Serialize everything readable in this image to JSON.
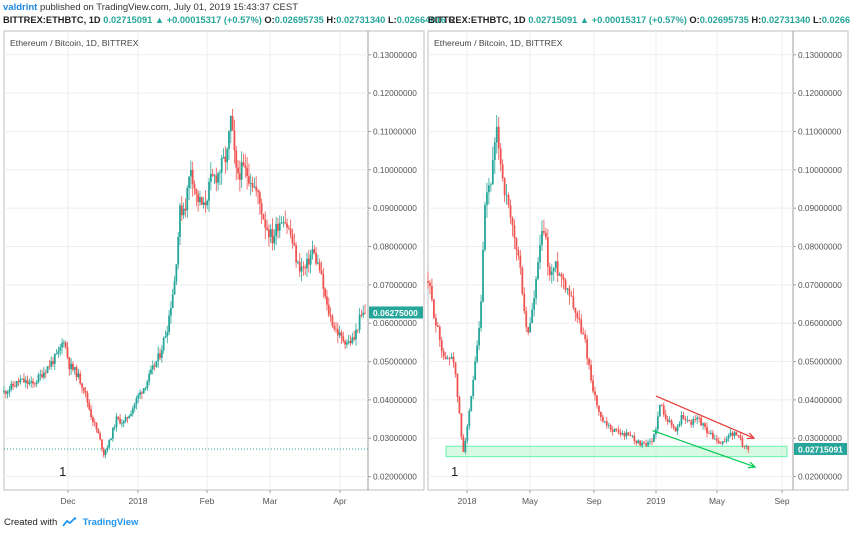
{
  "header": {
    "author": "valdrint",
    "published_text": "published on TradingView.com, July 01, 2019 15:43:37 CEST"
  },
  "quote_bar": {
    "symbol": "BITTREX:ETHBTC, 1D",
    "last": "0.02715091",
    "change": "▲ +0.00015317 (+0.57%)",
    "o_label": "O:",
    "o": "0.02695735",
    "h_label": "H:",
    "h": "0.02731340",
    "l_label": "L:",
    "l": "0.02664016",
    "c_label": "C"
  },
  "footer": {
    "created_with": "Created with",
    "brand": "TradingView"
  },
  "colors": {
    "up": "#26a69a",
    "down": "#ef5350",
    "grid": "#eeeeee",
    "axis": "#555555",
    "support_line": "#26a69a",
    "support_zone": "#b9f6ca",
    "wedge_upper": "#e53935",
    "wedge_lower": "#00c853"
  },
  "chart_data": [
    {
      "type": "candlestick",
      "title": "Ethereum / Bitcoin, 1D, BITTREX",
      "y_tick_labels": [
        "0.13000000",
        "0.12000000",
        "0.11000000",
        "0.10000000",
        "0.09000000",
        "0.08000000",
        "0.07000000",
        "0.06000000",
        "0.05000000",
        "0.04000000",
        "0.03000000",
        "0.02000000"
      ],
      "ylim": [
        0.0165,
        0.1362
      ],
      "x_tick_labels": [
        "Dec",
        "2018",
        "Feb",
        "Mar",
        "Apr"
      ],
      "last_price_label": "0.06275000",
      "support_level": 0.0272,
      "annotations": [
        {
          "text": "1",
          "date": "2017-11-25"
        }
      ],
      "series": [
        {
          "points": [
            [
              "2017-10-01",
              0.042
            ],
            [
              "2017-10-10",
              0.045
            ],
            [
              "2017-10-17",
              0.044
            ],
            [
              "2017-10-24",
              0.048
            ],
            [
              "2017-10-31",
              0.052
            ],
            [
              "2017-11-03",
              0.056
            ],
            [
              "2017-11-06",
              0.049
            ],
            [
              "2017-11-10",
              0.047
            ],
            [
              "2017-11-14",
              0.043
            ],
            [
              "2017-11-18",
              0.036
            ],
            [
              "2017-11-22",
              0.031
            ],
            [
              "2017-11-25",
              0.026
            ],
            [
              "2017-11-28",
              0.029
            ],
            [
              "2017-12-02",
              0.035
            ],
            [
              "2017-12-06",
              0.034
            ],
            [
              "2017-12-10",
              0.037
            ],
            [
              "2017-12-14",
              0.041
            ],
            [
              "2017-12-18",
              0.044
            ],
            [
              "2017-12-22",
              0.048
            ],
            [
              "2017-12-26",
              0.052
            ],
            [
              "2017-12-30",
              0.059
            ],
            [
              "2018-01-03",
              0.071
            ],
            [
              "2018-01-06",
              0.089
            ],
            [
              "2018-01-09",
              0.091
            ],
            [
              "2018-01-12",
              0.101
            ],
            [
              "2018-01-15",
              0.093
            ],
            [
              "2018-01-19",
              0.09
            ],
            [
              "2018-01-23",
              0.097
            ],
            [
              "2018-01-27",
              0.099
            ],
            [
              "2018-02-01",
              0.104
            ],
            [
              "2018-02-03",
              0.113
            ],
            [
              "2018-02-06",
              0.099
            ],
            [
              "2018-02-10",
              0.1
            ],
            [
              "2018-02-14",
              0.098
            ],
            [
              "2018-02-18",
              0.093
            ],
            [
              "2018-02-22",
              0.086
            ],
            [
              "2018-02-26",
              0.082
            ],
            [
              "2018-03-01",
              0.086
            ],
            [
              "2018-03-04",
              0.088
            ],
            [
              "2018-03-08",
              0.083
            ],
            [
              "2018-03-12",
              0.075
            ],
            [
              "2018-03-16",
              0.074
            ],
            [
              "2018-03-20",
              0.079
            ],
            [
              "2018-03-24",
              0.074
            ],
            [
              "2018-03-28",
              0.064
            ],
            [
              "2018-04-01",
              0.059
            ],
            [
              "2018-04-05",
              0.056
            ],
            [
              "2018-04-09",
              0.055
            ],
            [
              "2018-04-12",
              0.056
            ],
            [
              "2018-04-15",
              0.061
            ],
            [
              "2018-04-18",
              0.0628
            ]
          ]
        }
      ]
    },
    {
      "type": "candlestick",
      "title": "Ethereum / Bitcoin, 1D, BITTREX",
      "y_tick_labels": [
        "0.13000000",
        "0.12000000",
        "0.11000000",
        "0.10000000",
        "0.09000000",
        "0.08000000",
        "0.07000000",
        "0.06000000",
        "0.05000000",
        "0.04000000",
        "0.03000000",
        "0.02000000"
      ],
      "ylim": [
        0.0165,
        0.1362
      ],
      "x_tick_labels": [
        "2018",
        "May",
        "Sep",
        "2019",
        "May",
        "Sep"
      ],
      "last_price_label": "0.02715091",
      "support_zone": [
        0.0252,
        0.0279
      ],
      "annotations": [
        {
          "text": "1",
          "date": "2017-11-25"
        }
      ],
      "trendlines": [
        {
          "color": "wedge_upper",
          "from": [
            "2019-01-01",
            0.041
          ],
          "to": [
            "2019-07-10",
            0.03
          ]
        },
        {
          "color": "wedge_lower",
          "from": [
            "2018-12-25",
            0.032
          ],
          "to": [
            "2019-07-12",
            0.0225
          ]
        }
      ],
      "series": [
        {
          "points": [
            [
              "2017-09-15",
              0.071
            ],
            [
              "2017-10-01",
              0.06
            ],
            [
              "2017-10-20",
              0.05
            ],
            [
              "2017-11-05",
              0.052
            ],
            [
              "2017-11-18",
              0.036
            ],
            [
              "2017-11-25",
              0.026
            ],
            [
              "2017-12-10",
              0.038
            ],
            [
              "2017-12-30",
              0.06
            ],
            [
              "2018-01-10",
              0.092
            ],
            [
              "2018-01-22",
              0.098
            ],
            [
              "2018-02-03",
              0.11
            ],
            [
              "2018-02-15",
              0.097
            ],
            [
              "2018-03-01",
              0.087
            ],
            [
              "2018-03-20",
              0.076
            ],
            [
              "2018-04-05",
              0.056
            ],
            [
              "2018-04-20",
              0.067
            ],
            [
              "2018-05-01",
              0.08
            ],
            [
              "2018-05-10",
              0.085
            ],
            [
              "2018-05-20",
              0.072
            ],
            [
              "2018-06-01",
              0.075
            ],
            [
              "2018-06-15",
              0.072
            ],
            [
              "2018-07-01",
              0.068
            ],
            [
              "2018-07-15",
              0.062
            ],
            [
              "2018-08-01",
              0.055
            ],
            [
              "2018-08-15",
              0.044
            ],
            [
              "2018-09-01",
              0.035
            ],
            [
              "2018-09-15",
              0.033
            ],
            [
              "2018-10-01",
              0.032
            ],
            [
              "2018-10-15",
              0.031
            ],
            [
              "2018-11-01",
              0.031
            ],
            [
              "2018-11-15",
              0.029
            ],
            [
              "2018-12-01",
              0.028
            ],
            [
              "2018-12-15",
              0.029
            ],
            [
              "2018-12-25",
              0.034
            ],
            [
              "2019-01-01",
              0.039
            ],
            [
              "2019-01-15",
              0.035
            ],
            [
              "2019-02-01",
              0.032
            ],
            [
              "2019-02-15",
              0.036
            ],
            [
              "2019-03-01",
              0.034
            ],
            [
              "2019-03-20",
              0.035
            ],
            [
              "2019-04-05",
              0.032
            ],
            [
              "2019-04-20",
              0.03
            ],
            [
              "2019-05-05",
              0.028
            ],
            [
              "2019-05-20",
              0.031
            ],
            [
              "2019-06-05",
              0.031
            ],
            [
              "2019-06-20",
              0.028
            ],
            [
              "2019-07-01",
              0.0272
            ]
          ]
        }
      ]
    }
  ]
}
